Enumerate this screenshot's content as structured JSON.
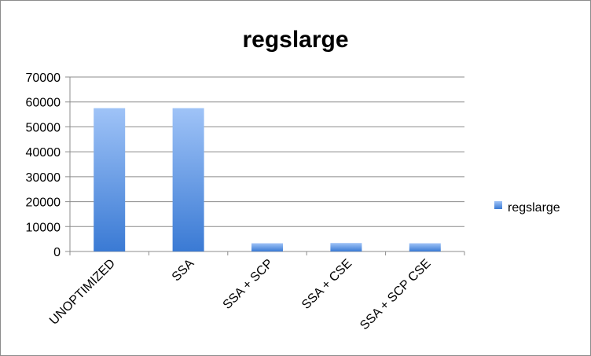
{
  "chart_data": {
    "type": "bar",
    "title": "regslarge",
    "xlabel": "",
    "ylabel": "",
    "categories": [
      "UNOPTIMIZED",
      "SSA",
      "SSA + SCP",
      "SSA + CSE",
      "SSA + SCP CSE"
    ],
    "series": [
      {
        "name": "regslarge",
        "values": [
          57500,
          57500,
          3300,
          3400,
          3300
        ]
      }
    ],
    "ylim": [
      0,
      70000
    ],
    "yticks": [
      0,
      10000,
      20000,
      30000,
      40000,
      50000,
      60000,
      70000
    ],
    "grid": true,
    "legend_position": "right",
    "colors": {
      "bar_top": "#9fc3f7",
      "bar_bottom": "#3a7ad4",
      "grid": "#8c8c8c",
      "frame": "#8c8c8c"
    }
  }
}
